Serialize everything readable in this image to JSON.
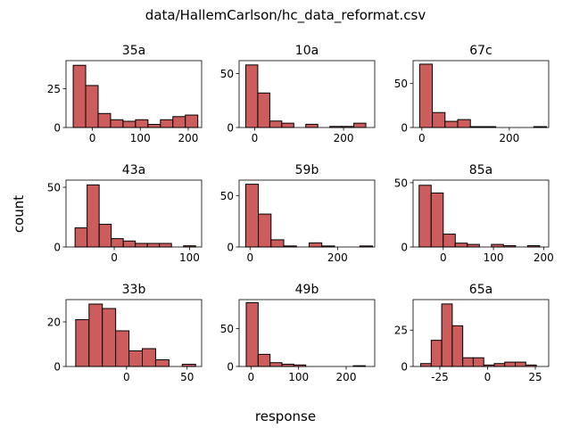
{
  "figure": {
    "suptitle": "data/HallemCarlson/hc_data_reformat.csv",
    "xlabel": "response",
    "ylabel": "count"
  },
  "style": {
    "bar_fill": "#cd5c5c",
    "bar_edge": "#000000"
  },
  "chart_data": [
    {
      "type": "bar",
      "title": "35a",
      "xlim": [
        -55,
        228
      ],
      "ylim": [
        0,
        43
      ],
      "xticks": [
        0,
        100,
        200
      ],
      "yticks": [
        0,
        25
      ],
      "bins": [
        -40,
        -14,
        12,
        38,
        64,
        90,
        116,
        142,
        168,
        194,
        220
      ],
      "counts": [
        40,
        27,
        9,
        5,
        4,
        5,
        2,
        5,
        7,
        8
      ]
    },
    {
      "type": "bar",
      "title": "10a",
      "xlim": [
        -35,
        270
      ],
      "ylim": [
        0,
        62
      ],
      "xticks": [
        0,
        200
      ],
      "yticks": [
        0,
        50
      ],
      "bins": [
        -20,
        7,
        34,
        61,
        88,
        115,
        142,
        169,
        196,
        223,
        250
      ],
      "counts": [
        58,
        32,
        6,
        4,
        0,
        3,
        0,
        1,
        1,
        4
      ]
    },
    {
      "type": "bar",
      "title": "67c",
      "xlim": [
        -20,
        290
      ],
      "ylim": [
        0,
        76
      ],
      "xticks": [
        0,
        200
      ],
      "yticks": [
        0,
        50
      ],
      "bins": [
        -5,
        24,
        53,
        82,
        111,
        140,
        169,
        198,
        227,
        256,
        285
      ],
      "counts": [
        72,
        17,
        7,
        9,
        1,
        1,
        0,
        0,
        0,
        1
      ]
    },
    {
      "type": "bar",
      "title": "43a",
      "xlim": [
        -64,
        116
      ],
      "ylim": [
        0,
        56
      ],
      "xticks": [
        0,
        100
      ],
      "yticks": [
        0,
        50
      ],
      "bins": [
        -52,
        -36,
        -20,
        -4,
        12,
        28,
        44,
        60,
        76,
        92,
        108
      ],
      "counts": [
        16,
        52,
        19,
        7,
        5,
        3,
        3,
        3,
        0,
        1
      ]
    },
    {
      "type": "bar",
      "title": "59b",
      "xlim": [
        -25,
        285
      ],
      "ylim": [
        0,
        65
      ],
      "xticks": [
        0,
        200
      ],
      "yticks": [
        0,
        50
      ],
      "bins": [
        -10,
        19,
        48,
        77,
        106,
        135,
        164,
        193,
        222,
        251,
        280
      ],
      "counts": [
        61,
        32,
        7,
        1,
        0,
        4,
        1,
        0,
        0,
        1
      ]
    },
    {
      "type": "bar",
      "title": "85a",
      "xlim": [
        -60,
        210
      ],
      "ylim": [
        0,
        52
      ],
      "xticks": [
        0,
        100,
        200
      ],
      "yticks": [
        0,
        50
      ],
      "bins": [
        -48,
        -24,
        0,
        24,
        48,
        72,
        96,
        120,
        144,
        168,
        192
      ],
      "counts": [
        48,
        42,
        10,
        3,
        2,
        0,
        2,
        1,
        0,
        1
      ]
    },
    {
      "type": "bar",
      "title": "33b",
      "xlim": [
        -50,
        62
      ],
      "ylim": [
        0,
        30
      ],
      "xticks": [
        0,
        50
      ],
      "yticks": [
        0,
        20
      ],
      "bins": [
        -42,
        -31,
        -20,
        -9,
        2,
        13,
        24,
        35,
        46,
        57
      ],
      "counts": [
        21,
        28,
        26,
        16,
        7,
        8,
        3,
        0,
        1
      ]
    },
    {
      "type": "bar",
      "title": "49b",
      "xlim": [
        -25,
        260
      ],
      "ylim": [
        0,
        88
      ],
      "xticks": [
        0,
        100,
        200
      ],
      "yticks": [
        0,
        50
      ],
      "bins": [
        -10,
        15,
        40,
        65,
        90,
        115,
        140,
        165,
        190,
        215,
        240
      ],
      "counts": [
        84,
        16,
        5,
        3,
        2,
        0,
        0,
        0,
        0,
        1
      ]
    },
    {
      "type": "bar",
      "title": "65a",
      "xlim": [
        -39,
        32
      ],
      "ylim": [
        0,
        46
      ],
      "xticks": [
        -25,
        0,
        25
      ],
      "yticks": [
        0,
        25
      ],
      "bins": [
        -35,
        -29.5,
        -24,
        -18.5,
        -13,
        -7.5,
        -2,
        3.5,
        9,
        14.5,
        20,
        25.5,
        31
      ],
      "counts": [
        2,
        18,
        43,
        28,
        6,
        6,
        1,
        2,
        3,
        3,
        1,
        0
      ]
    }
  ]
}
